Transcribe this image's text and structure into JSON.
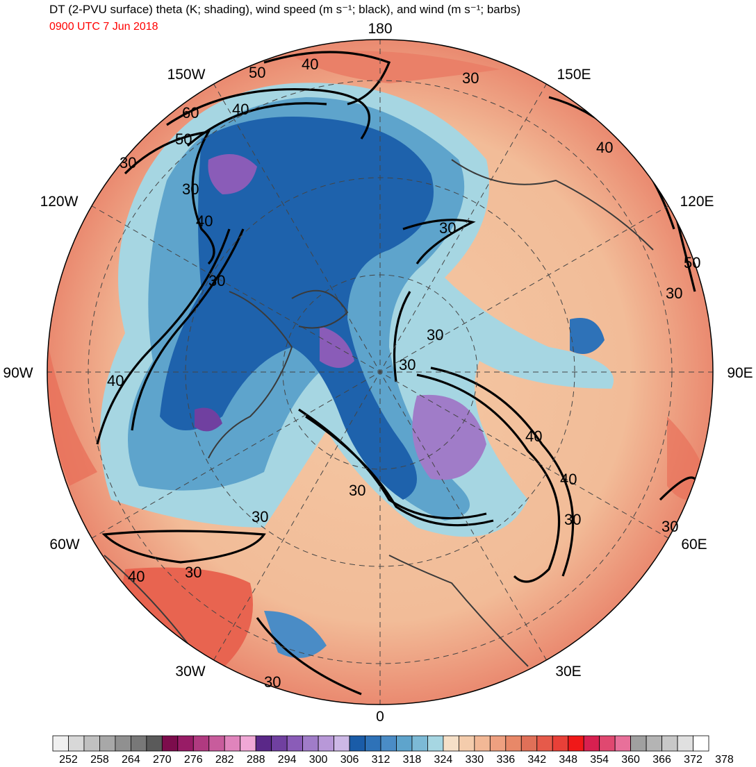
{
  "header": {
    "title": "DT (2-PVU surface) theta (K; shading), wind speed (m s⁻¹; black), and wind (m s⁻¹; barbs)",
    "valid_time": "0900 UTC 7 Jun 2018"
  },
  "longitude_labels": {
    "n180": "180",
    "w150": "150W",
    "e150": "150E",
    "w120": "120W",
    "e120": "120E",
    "w90": "90W",
    "e90": "90E",
    "w60": "60W",
    "e60": "60E",
    "w30": "30W",
    "e30": "30E",
    "n0": "0"
  },
  "contour_labels": [
    "50",
    "40",
    "60",
    "40",
    "50",
    "30",
    "30",
    "40",
    "30",
    "30",
    "40",
    "30",
    "30",
    "30",
    "40",
    "30",
    "40",
    "30",
    "30",
    "40",
    "50",
    "30",
    "30",
    "30",
    "40",
    "30"
  ],
  "colorbar": {
    "colors": [
      "#f0f0f0",
      "#d8d8d8",
      "#c0c0c0",
      "#a8a8a8",
      "#909090",
      "#787878",
      "#5a5a5a",
      "#7c0c4c",
      "#981c66",
      "#b03a80",
      "#c85c9c",
      "#e084bc",
      "#f0a8d6",
      "#5a2888",
      "#7040a0",
      "#8a5cb8",
      "#a07cc8",
      "#b898d8",
      "#cdb8e6",
      "#1a5ca8",
      "#2e72b8",
      "#4a8cc6",
      "#5ea4cc",
      "#7cbad6",
      "#a6d6e2",
      "#f6e0c8",
      "#f4ccac",
      "#f2b896",
      "#eea080",
      "#e88868",
      "#e07058",
      "#e65a4a",
      "#e84038",
      "#f01818",
      "#d82050",
      "#e04870",
      "#e8709a",
      "#a0a0a0",
      "#b4b4b4",
      "#c8c8c8",
      "#e0e0e0",
      "#ffffff"
    ],
    "tick_labels": [
      "252",
      "258",
      "264",
      "270",
      "276",
      "282",
      "288",
      "294",
      "300",
      "306",
      "312",
      "318",
      "324",
      "330",
      "336",
      "342",
      "348",
      "354",
      "360",
      "366",
      "372",
      "378"
    ]
  }
}
